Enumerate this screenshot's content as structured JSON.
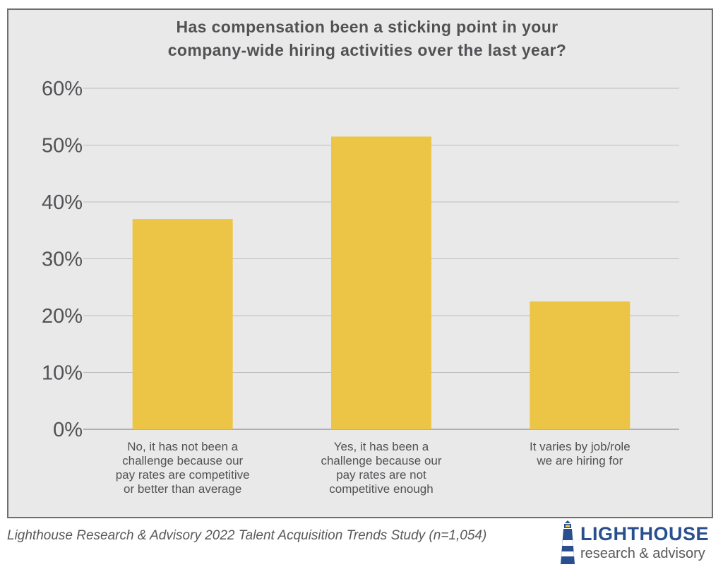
{
  "chart_data": {
    "type": "bar",
    "title_lines": [
      "Has compensation been a sticking point in your",
      "company-wide hiring activities over the last year?"
    ],
    "categories": [
      [
        "No, it has not been a",
        "challenge because our",
        "pay rates are competitive",
        "or better than average"
      ],
      [
        "Yes, it has been a",
        "challenge because our",
        "pay rates are not",
        "competitive enough"
      ],
      [
        "It varies by job/role",
        "we are hiring for"
      ]
    ],
    "values": [
      37,
      51.5,
      22.5
    ],
    "y_ticks": [
      "0%",
      "10%",
      "20%",
      "30%",
      "40%",
      "50%",
      "60%"
    ],
    "ylim": [
      0,
      60
    ],
    "grid": true,
    "bar_color": "#ecc546"
  },
  "footer": {
    "source": "Lighthouse Research & Advisory 2022 Talent Acquisition Trends Study (n=1,054)"
  },
  "logo": {
    "name": "LIGHTHOUSE",
    "tagline": "research & advisory",
    "icon": "lighthouse-icon"
  },
  "colors": {
    "panel_bg": "#e9e9ea",
    "grid": "#bdbdbf",
    "text": "#515254",
    "brand": "#2a4f8f"
  }
}
